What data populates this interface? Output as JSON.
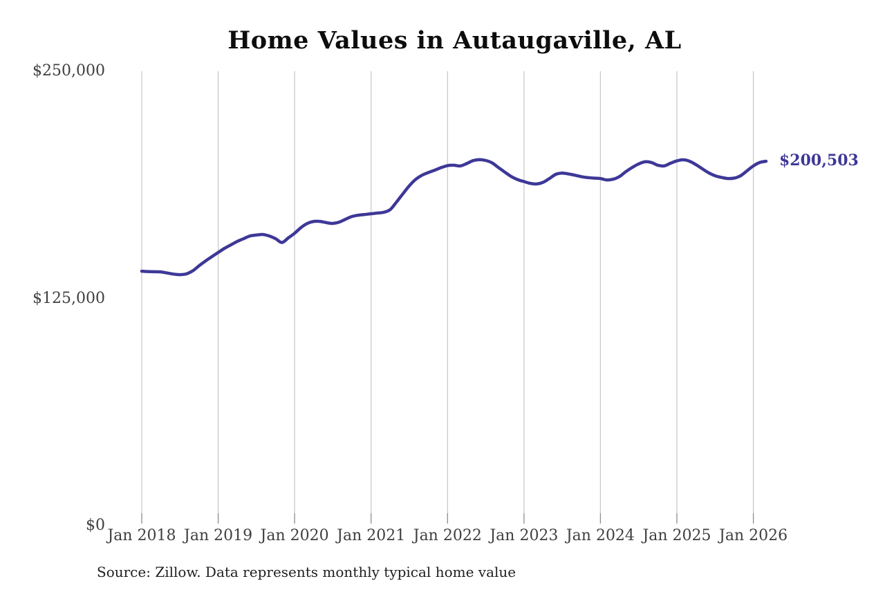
{
  "title": "Home Values in Autaugaville, AL",
  "source_note": "Source: Zillow. Data represents monthly typical home value",
  "latest_value_label": "$200,503",
  "colors": {
    "line": "#3d3897",
    "latest_label": "#3d3897",
    "gridline": "#c9c9c9",
    "tick": "#8c8c8c",
    "axis_text": "#3f3f3f",
    "title_text": "#0d0d0d"
  },
  "chart_data": {
    "type": "line",
    "title": "Home Values in Autaugaville, AL",
    "xlabel": "",
    "ylabel": "",
    "ylim": [
      0,
      250000
    ],
    "grid": "vertical-only",
    "legend": "none",
    "series_name": "Typical home value",
    "x": [
      "2018-01",
      "2018-02",
      "2018-03",
      "2018-04",
      "2018-05",
      "2018-06",
      "2018-07",
      "2018-08",
      "2018-09",
      "2018-10",
      "2018-11",
      "2018-12",
      "2019-01",
      "2019-02",
      "2019-03",
      "2019-04",
      "2019-05",
      "2019-06",
      "2019-07",
      "2019-08",
      "2019-09",
      "2019-10",
      "2019-11",
      "2019-12",
      "2020-01",
      "2020-02",
      "2020-03",
      "2020-04",
      "2020-05",
      "2020-06",
      "2020-07",
      "2020-08",
      "2020-09",
      "2020-10",
      "2020-11",
      "2020-12",
      "2021-01",
      "2021-02",
      "2021-03",
      "2021-04",
      "2021-05",
      "2021-06",
      "2021-07",
      "2021-08",
      "2021-09",
      "2021-10",
      "2021-11",
      "2021-12",
      "2022-01",
      "2022-02",
      "2022-03",
      "2022-04",
      "2022-05",
      "2022-06",
      "2022-07",
      "2022-08",
      "2022-09",
      "2022-10",
      "2022-11",
      "2022-12",
      "2023-01",
      "2023-02",
      "2023-03",
      "2023-04",
      "2023-05",
      "2023-06",
      "2023-07",
      "2023-08",
      "2023-09",
      "2023-10",
      "2023-11",
      "2023-12",
      "2024-01",
      "2024-02",
      "2024-03",
      "2024-04",
      "2024-05",
      "2024-06",
      "2024-07",
      "2024-08",
      "2024-09",
      "2024-10",
      "2024-11",
      "2024-12",
      "2025-01",
      "2025-02",
      "2025-03",
      "2025-04",
      "2025-05",
      "2025-06",
      "2025-07",
      "2025-08",
      "2025-09",
      "2025-10",
      "2025-11",
      "2025-12",
      "2026-01",
      "2026-02",
      "2026-03"
    ],
    "values": [
      140000,
      139800,
      139700,
      139600,
      139000,
      138400,
      138100,
      138500,
      140200,
      143000,
      145600,
      148000,
      150300,
      152600,
      154500,
      156400,
      157900,
      159400,
      159900,
      160200,
      159400,
      157900,
      155800,
      158300,
      160900,
      164000,
      166300,
      167400,
      167400,
      166700,
      166300,
      167000,
      168600,
      170100,
      170800,
      171200,
      171600,
      172000,
      172400,
      173900,
      178100,
      182600,
      187000,
      190500,
      192800,
      194300,
      195600,
      197000,
      198100,
      198300,
      197900,
      199200,
      200800,
      201400,
      200900,
      199600,
      197000,
      194500,
      192100,
      190400,
      189300,
      188300,
      188000,
      188900,
      191000,
      193300,
      194000,
      193500,
      192800,
      192000,
      191500,
      191200,
      191000,
      190200,
      190600,
      192100,
      194800,
      197100,
      199000,
      200200,
      199800,
      198300,
      197900,
      199400,
      200700,
      201300,
      200500,
      198600,
      196300,
      194100,
      192500,
      191600,
      191000,
      191200,
      192500,
      195200,
      197900,
      199800,
      200503
    ],
    "end_value": 200503,
    "end_value_label": "$200,503",
    "y_ticks": [
      {
        "label": "$250,000",
        "value": 250000
      },
      {
        "label": "$125,000",
        "value": 125000
      },
      {
        "label": "$0",
        "value": 0
      }
    ],
    "x_ticks": [
      {
        "label": "Jan 2018",
        "month_index": 0
      },
      {
        "label": "Jan 2019",
        "month_index": 12
      },
      {
        "label": "Jan 2020",
        "month_index": 24
      },
      {
        "label": "Jan 2021",
        "month_index": 36
      },
      {
        "label": "Jan 2022",
        "month_index": 48
      },
      {
        "label": "Jan 2023",
        "month_index": 60
      },
      {
        "label": "Jan 2024",
        "month_index": 72
      },
      {
        "label": "Jan 2025",
        "month_index": 84
      },
      {
        "label": "Jan 2026",
        "month_index": 96
      }
    ]
  }
}
